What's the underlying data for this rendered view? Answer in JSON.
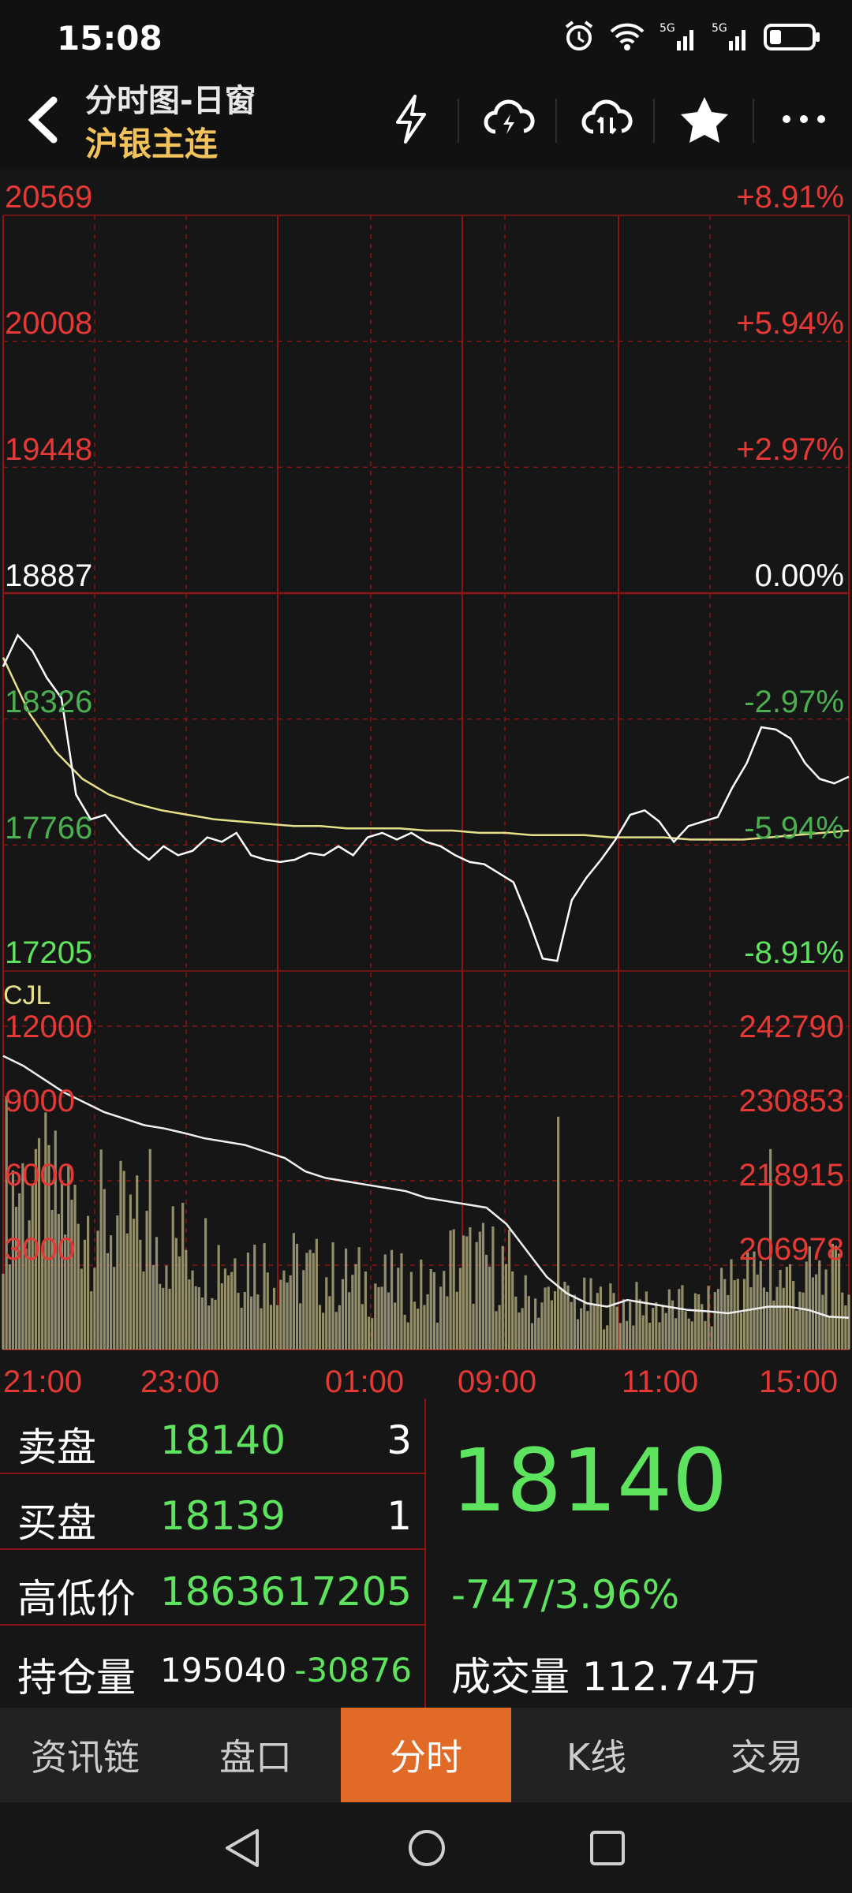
{
  "status_bar": {
    "time": "15:08",
    "sig1": "5G",
    "sig2": "5G"
  },
  "header": {
    "title": "分时图-日窗",
    "subtitle": "沪银主连",
    "icons": [
      "back-arrow-icon",
      "lightning-icon",
      "cloud-lightning-icon",
      "cloud-sync-icon",
      "star-icon",
      "more-icon"
    ]
  },
  "price_axis": {
    "left": [
      "20569",
      "20008",
      "19448",
      "18887",
      "18326",
      "17766",
      "17205"
    ],
    "right": [
      "+8.91%",
      "+5.94%",
      "+2.97%",
      "0.00%",
      "-2.97%",
      "-5.94%",
      "-8.91%"
    ]
  },
  "volume_axis": {
    "label": "CJL",
    "left": [
      "12000",
      "9000",
      "6000",
      "3000"
    ],
    "right": [
      "242790",
      "230853",
      "218915",
      "206978"
    ]
  },
  "time_axis": [
    "21:00",
    "23:00",
    "01:00",
    "09:00",
    "11:00",
    "15:00"
  ],
  "chart_data": {
    "type": "line",
    "price_series": [
      18560,
      18700,
      18630,
      18510,
      18420,
      17990,
      17880,
      17900,
      17820,
      17750,
      17700,
      17760,
      17720,
      17740,
      17800,
      17780,
      17820,
      17720,
      17700,
      17690,
      17700,
      17730,
      17720,
      17760,
      17720,
      17800,
      17820,
      17790,
      17820,
      17780,
      17760,
      17720,
      17690,
      17680,
      17640,
      17600,
      17440,
      17260,
      17250,
      17520,
      17620,
      17700,
      17790,
      17900,
      17920,
      17870,
      17780,
      17850,
      17870,
      17890,
      18020,
      18130,
      18290,
      18280,
      18240,
      18130,
      18060,
      18040,
      18070
    ],
    "avg_series": [
      18600,
      18350,
      18180,
      18060,
      17990,
      17950,
      17920,
      17900,
      17880,
      17870,
      17860,
      17850,
      17850,
      17840,
      17840,
      17840,
      17830,
      17830,
      17820,
      17820,
      17810,
      17810,
      17810,
      17800,
      17800,
      17800,
      17790,
      17790,
      17790,
      17800,
      17810,
      17820,
      17830
    ],
    "price_ylim": [
      17205,
      20569
    ],
    "open_interest_series": [
      241500,
      240000,
      238000,
      236000,
      234500,
      233000,
      232000,
      231000,
      230500,
      229800,
      229000,
      228500,
      228000,
      227000,
      226000,
      224000,
      223000,
      222500,
      222000,
      221500,
      221000,
      220000,
      219500,
      219000,
      218500,
      216000,
      212000,
      208000,
      205500,
      204000,
      203500,
      204500,
      204000,
      203500,
      203000,
      202800,
      202500,
      203000,
      203500,
      203500,
      203000,
      202000,
      201800
    ]
  },
  "quote": {
    "sell_label": "卖盘",
    "sell_price": "18140",
    "sell_qty": "3",
    "buy_label": "买盘",
    "buy_price": "18139",
    "buy_qty": "1",
    "hl_label": "高低价",
    "high": "18636",
    "low": "17205",
    "oi_label": "持仓量",
    "oi": "195040",
    "oi_change": "-30876",
    "last_price": "18140",
    "change": "-747/3.96%",
    "volume_label": "成交量",
    "volume": "112.74万"
  },
  "tabs": [
    "资讯链",
    "盘口",
    "分时",
    "K线",
    "交易"
  ],
  "active_tab": 2,
  "colors": {
    "up": "#e53935",
    "down": "#5ee35e",
    "grid": "#8b1414",
    "avg": "#e6e08a",
    "accent": "#e06a26"
  }
}
